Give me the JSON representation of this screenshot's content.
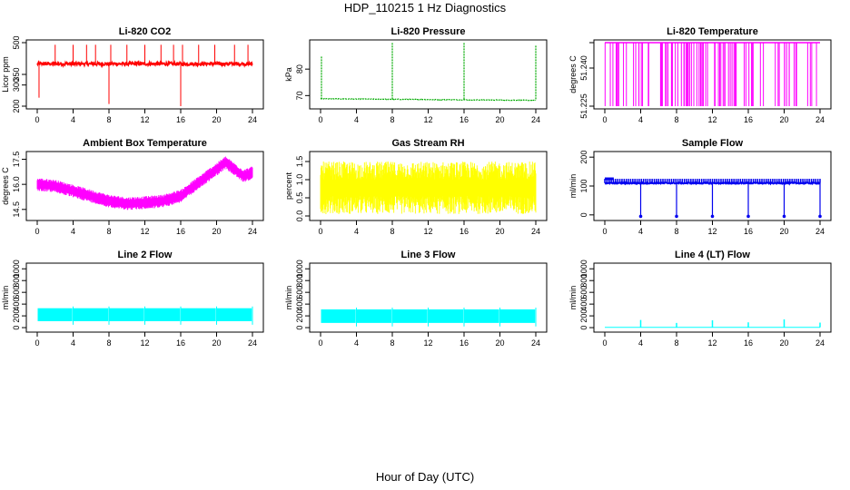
{
  "title": "HDP_110215  1 Hz Diagnostics",
  "x_axis_title": "Hour of Day (UTC)",
  "chart_data": [
    {
      "type": "line",
      "title": "Li-820 CO2",
      "ylabel": "Licor ppm",
      "color": "#ff0000",
      "xlim": [
        0,
        24
      ],
      "ylim": [
        200,
        500
      ],
      "yticks": [
        "200",
        "300",
        "350",
        "500"
      ],
      "xticks": [
        "0",
        "4",
        "8",
        "12",
        "16",
        "20",
        "24"
      ],
      "series": [
        {
          "baseline": 400,
          "noise": 8,
          "spikes_up": [
            2,
            4,
            5.5,
            6.5,
            8.2,
            10,
            12,
            13.8,
            15.2,
            16.2,
            18,
            19.8,
            22,
            23.5
          ],
          "spikes_up_to": 490,
          "spikes_down": [
            0.2,
            8,
            16
          ],
          "spikes_down_to": [
            240,
            210,
            200
          ],
          "x_end": 24
        }
      ]
    },
    {
      "type": "line",
      "title": "Li-820 Pressure",
      "ylabel": "kPa",
      "color": "#00aa00",
      "xlim": [
        0,
        24
      ],
      "ylim": [
        66,
        90
      ],
      "yticks": [
        "70",
        "80"
      ],
      "xticks": [
        "0",
        "4",
        "8",
        "12",
        "16",
        "20",
        "24"
      ],
      "series": [
        {
          "baseline_start": 68.8,
          "baseline_end": 68.2,
          "noise": 0.12,
          "spikes_up": [
            0.1,
            8,
            16,
            24
          ],
          "spikes_up_to": [
            85,
            90,
            90,
            89
          ],
          "x_end": 24
        }
      ]
    },
    {
      "type": "line",
      "title": "Li-820 Temperature",
      "ylabel": "degrees C",
      "color": "#ff00ff",
      "xlim": [
        0,
        24
      ],
      "ylim": [
        51.225,
        51.25
      ],
      "yticks": [
        "51.225",
        "51.240",
        ""
      ],
      "xticks": [
        "0",
        "4",
        "8",
        "12",
        "16",
        "20",
        "24"
      ],
      "series": [
        {
          "high": 51.25,
          "low": 51.225,
          "drop_density": "dense 0-17, sparse 17-24",
          "x_end": 24
        }
      ]
    },
    {
      "type": "line",
      "title": "Ambient Box Temperature",
      "ylabel": "degrees C",
      "color": "#ff00ff",
      "xlim": [
        0,
        24
      ],
      "ylim": [
        14,
        17.8
      ],
      "yticks": [
        "14.5",
        "16.0",
        "17.5"
      ],
      "xticks": [
        "0",
        "4",
        "8",
        "12",
        "16",
        "20",
        "24"
      ],
      "series": [
        {
          "x": [
            0,
            2,
            4,
            6,
            8,
            10,
            12,
            14,
            16,
            18,
            20,
            21,
            22,
            23,
            24
          ],
          "y": [
            16.0,
            15.9,
            15.6,
            15.3,
            15.0,
            14.85,
            14.9,
            15.0,
            15.3,
            16.1,
            16.9,
            17.3,
            16.9,
            16.5,
            16.7
          ],
          "band": 0.35
        }
      ]
    },
    {
      "type": "area",
      "title": "Gas Stream RH",
      "ylabel": "percent",
      "color": "#ffff00",
      "xlim": [
        0,
        24
      ],
      "ylim": [
        -0.05,
        1.7
      ],
      "yticks": [
        "0.0",
        "0.5",
        "1.0",
        "1.5"
      ],
      "xticks": [
        "0",
        "4",
        "8",
        "12",
        "16",
        "20",
        "24"
      ],
      "series": [
        {
          "low_mean": 0.3,
          "high_mean": 1.25,
          "spread": 0.25,
          "x_end": 24
        }
      ]
    },
    {
      "type": "line",
      "title": "Sample Flow",
      "ylabel": "ml/min",
      "color": "#0000ee",
      "xlim": [
        0,
        24
      ],
      "ylim": [
        -10,
        210
      ],
      "yticks": [
        "0",
        "100",
        "200"
      ],
      "xticks": [
        "0",
        "4",
        "8",
        "12",
        "16",
        "20",
        "24"
      ],
      "series": [
        {
          "baseline": 110,
          "high_band": 125,
          "drops": [
            4,
            8,
            12,
            16,
            20,
            24
          ],
          "drop_to": -5,
          "x_end": 24
        }
      ]
    },
    {
      "type": "area",
      "title": "Line 2 Flow",
      "ylabel": "ml/min",
      "color": "#00ffff",
      "xlim": [
        0,
        24
      ],
      "ylim": [
        -30,
        1050
      ],
      "yticks": [
        "0",
        "200",
        "400",
        "600",
        "800",
        "1000"
      ],
      "xticks": [
        "0",
        "4",
        "8",
        "12",
        "16",
        "20",
        "24"
      ],
      "series": [
        {
          "low": 110,
          "high": 330,
          "gaps": [
            4,
            8,
            12,
            16,
            20,
            24
          ],
          "x_end": 24
        }
      ]
    },
    {
      "type": "area",
      "title": "Line 3 Flow",
      "ylabel": "ml/min",
      "color": "#00ffff",
      "xlim": [
        0,
        24
      ],
      "ylim": [
        -30,
        1050
      ],
      "yticks": [
        "0",
        "200",
        "400",
        "600",
        "800",
        "1000"
      ],
      "xticks": [
        "0",
        "4",
        "8",
        "12",
        "16",
        "20",
        "24"
      ],
      "series": [
        {
          "low": 80,
          "high": 310,
          "gaps": [
            4,
            8,
            12,
            16,
            20,
            24
          ],
          "x_end": 24
        }
      ]
    },
    {
      "type": "line",
      "title": "Line 4 (LT) Flow",
      "ylabel": "ml/min",
      "color": "#00ffff",
      "xlim": [
        0,
        24
      ],
      "ylim": [
        -30,
        1050
      ],
      "yticks": [
        "0",
        "200",
        "400",
        "600",
        "800",
        "1000"
      ],
      "xticks": [
        "0",
        "4",
        "8",
        "12",
        "16",
        "20",
        "24"
      ],
      "series": [
        {
          "baseline": 5,
          "spikes_up": [
            4,
            8,
            12,
            16,
            20,
            24
          ],
          "spikes_up_to": [
            130,
            80,
            125,
            90,
            140,
            85
          ],
          "x_end": 24
        }
      ]
    }
  ]
}
